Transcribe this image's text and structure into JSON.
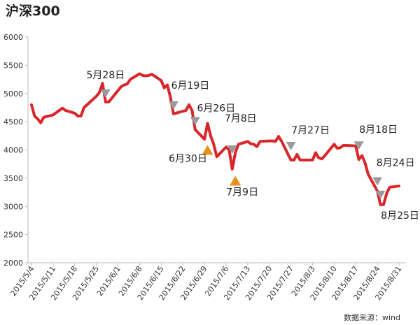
{
  "chart_data": {
    "type": "line",
    "title": "沪深300",
    "source": "数据来源：wind",
    "x": [
      "2015/5/4",
      "2015/5/5",
      "2015/5/6",
      "2015/5/7",
      "2015/5/8",
      "2015/5/11",
      "2015/5/12",
      "2015/5/13",
      "2015/5/14",
      "2015/5/15",
      "2015/5/18",
      "2015/5/19",
      "2015/5/20",
      "2015/5/21",
      "2015/5/22",
      "2015/5/25",
      "2015/5/26",
      "2015/5/27",
      "2015/5/28",
      "2015/5/29",
      "2015/6/1",
      "2015/6/2",
      "2015/6/3",
      "2015/6/4",
      "2015/6/5",
      "2015/6/8",
      "2015/6/9",
      "2015/6/10",
      "2015/6/11",
      "2015/6/12",
      "2015/6/15",
      "2015/6/16",
      "2015/6/17",
      "2015/6/18",
      "2015/6/19",
      "2015/6/23",
      "2015/6/24",
      "2015/6/25",
      "2015/6/26",
      "2015/6/29",
      "2015/6/30",
      "2015/7/1",
      "2015/7/2",
      "2015/7/3",
      "2015/7/6",
      "2015/7/7",
      "2015/7/8",
      "2015/7/9",
      "2015/7/10",
      "2015/7/13",
      "2015/7/14",
      "2015/7/15",
      "2015/7/16",
      "2015/7/17",
      "2015/7/20",
      "2015/7/21",
      "2015/7/22",
      "2015/7/23",
      "2015/7/24",
      "2015/7/27",
      "2015/7/28",
      "2015/7/29",
      "2015/7/30",
      "2015/7/31",
      "2015/8/3",
      "2015/8/4",
      "2015/8/5",
      "2015/8/6",
      "2015/8/7",
      "2015/8/10",
      "2015/8/11",
      "2015/8/12",
      "2015/8/13",
      "2015/8/14",
      "2015/8/17",
      "2015/8/18",
      "2015/8/19",
      "2015/8/20",
      "2015/8/21",
      "2015/8/24",
      "2015/8/25",
      "2015/8/26",
      "2015/8/27",
      "2015/8/28",
      "2015/8/31"
    ],
    "series": [
      {
        "name": "沪深300",
        "color": "#d9262a",
        "values": [
          4800,
          4600,
          4550,
          4480,
          4580,
          4620,
          4660,
          4700,
          4740,
          4700,
          4650,
          4600,
          4600,
          4750,
          4800,
          4950,
          5020,
          5180,
          4850,
          4850,
          5050,
          5120,
          5150,
          5170,
          5250,
          5350,
          5320,
          5310,
          5320,
          5340,
          5230,
          5100,
          5150,
          4930,
          4640,
          4700,
          4800,
          4700,
          4360,
          4190,
          4470,
          4250,
          4100,
          3880,
          4050,
          4000,
          3660,
          3950,
          4100,
          4150,
          4110,
          4100,
          4060,
          4150,
          4160,
          4160,
          4150,
          4240,
          4150,
          3820,
          3820,
          3920,
          3820,
          3820,
          3820,
          3950,
          3860,
          3840,
          3900,
          4100,
          4030,
          4040,
          4080,
          4080,
          4070,
          3830,
          3900,
          3770,
          3570,
          3270,
          3030,
          3030,
          3230,
          3340,
          3360
        ]
      }
    ],
    "ylim": [
      2000,
      6000
    ],
    "yticks": [
      2000,
      2500,
      3000,
      3500,
      4000,
      4500,
      5000,
      5500,
      6000
    ],
    "xlim": [
      "2015/5/4",
      "2015/8/31"
    ],
    "xticks": [
      "2015/5/4",
      "2015/5/11",
      "2015/5/18",
      "2015/5/25",
      "2015/6/1",
      "2015/6/8",
      "2015/6/15",
      "2015/6/22",
      "2015/6/29",
      "2015/7/6",
      "2015/7/13",
      "2015/7/20",
      "2015/7/27",
      "2015/8/3",
      "2015/8/10",
      "2015/8/17",
      "2015/8/24",
      "2015/8/31"
    ],
    "marker_colors": {
      "down": "#9a9a9a",
      "up": "#e8901a"
    },
    "annotations": [
      {
        "text": "5月28日",
        "x": "2015/5/28",
        "marker": "down"
      },
      {
        "text": "6月19日",
        "x": "2015/6/19",
        "marker": "down"
      },
      {
        "text": "6月26日",
        "x": "2015/6/26",
        "marker": "down"
      },
      {
        "text": "6月30日",
        "x": "2015/6/30",
        "marker": "up"
      },
      {
        "text": "7月8日",
        "x": "2015/7/8",
        "marker": "down"
      },
      {
        "text": "7月9日",
        "x": "2015/7/9",
        "marker": "up"
      },
      {
        "text": "7月27日",
        "x": "2015/7/27",
        "marker": "down"
      },
      {
        "text": "8月18日",
        "x": "2015/8/18",
        "marker": "down"
      },
      {
        "text": "8月24日",
        "x": "2015/8/24",
        "marker": "down"
      },
      {
        "text": "8月25日",
        "x": "2015/8/25",
        "marker": "down"
      }
    ]
  }
}
